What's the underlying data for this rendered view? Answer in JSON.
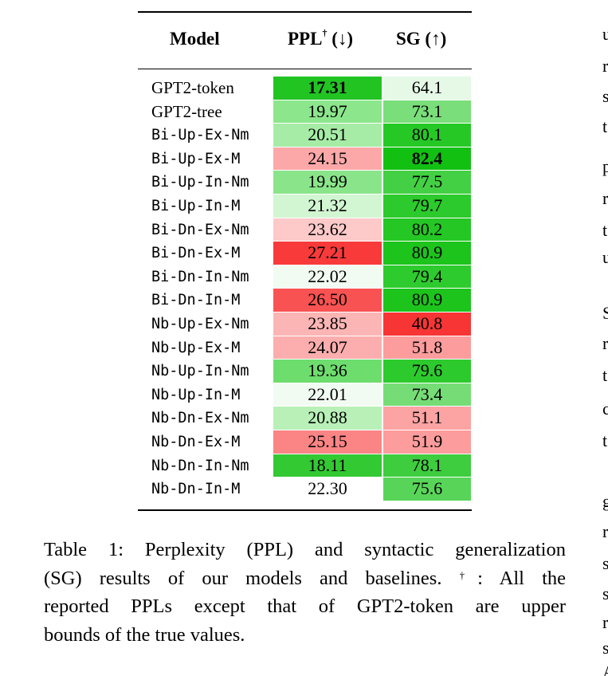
{
  "table": {
    "header": {
      "model": "Model",
      "ppl": "PPL",
      "ppl_dagger": "†",
      "ppl_arrow": "(↓)",
      "sg": "SG (↑)"
    },
    "rows": [
      {
        "model": "GPT2-token",
        "mono": false,
        "ppl": "17.31",
        "ppl_bold": true,
        "ppl_color": "#22c422",
        "sg": "64.1",
        "sg_bold": false,
        "sg_color": "#e6f8e6"
      },
      {
        "model": "GPT2-tree",
        "mono": false,
        "ppl": "19.97",
        "ppl_color": "#8ce68c",
        "sg": "73.1",
        "sg_color": "#7ade7a"
      },
      {
        "model": "Bi-Up-Ex-Nm",
        "mono": true,
        "ppl": "20.51",
        "ppl_color": "#a6eca6",
        "sg": "80.1",
        "sg_color": "#26c826"
      },
      {
        "model": "Bi-Up-Ex-M",
        "mono": true,
        "ppl": "24.15",
        "ppl_color": "#fca8a8",
        "sg": "82.4",
        "sg_bold": true,
        "sg_color": "#12c012"
      },
      {
        "model": "Bi-Up-In-Nm",
        "mono": true,
        "ppl": "19.99",
        "ppl_color": "#8ae58a",
        "sg": "77.5",
        "sg_color": "#44d044"
      },
      {
        "model": "Bi-Up-In-M",
        "mono": true,
        "ppl": "21.32",
        "ppl_color": "#d2f5d2",
        "sg": "79.7",
        "sg_color": "#2cca2c"
      },
      {
        "model": "Bi-Dn-Ex-Nm",
        "mono": true,
        "ppl": "23.62",
        "ppl_color": "#fdc9c9",
        "sg": "80.2",
        "sg_color": "#24c724"
      },
      {
        "model": "Bi-Dn-Ex-M",
        "mono": true,
        "ppl": "27.21",
        "ppl_color": "#f83a3a",
        "sg": "80.9",
        "sg_color": "#1cc41c"
      },
      {
        "model": "Bi-Dn-In-Nm",
        "mono": true,
        "ppl": "22.02",
        "ppl_color": "#f2fbf2",
        "sg": "79.4",
        "sg_color": "#2ecb2e"
      },
      {
        "model": "Bi-Dn-In-M",
        "mono": true,
        "ppl": "26.50",
        "ppl_color": "#f95252",
        "sg": "80.9",
        "sg_color": "#1cc41c"
      },
      {
        "model": "Nb-Up-Ex-Nm",
        "mono": true,
        "ppl": "23.85",
        "ppl_color": "#fcb5b5",
        "sg": "40.8",
        "sg_color": "#f73535"
      },
      {
        "model": "Nb-Up-Ex-M",
        "mono": true,
        "ppl": "24.07",
        "ppl_color": "#fcadad",
        "sg": "51.8",
        "sg_color": "#fc9c9c"
      },
      {
        "model": "Nb-Up-In-Nm",
        "mono": true,
        "ppl": "19.36",
        "ppl_color": "#6ddd6d",
        "sg": "79.6",
        "sg_color": "#2dca2d"
      },
      {
        "model": "Nb-Up-In-M",
        "mono": true,
        "ppl": "22.01",
        "ppl_color": "#f2fbf2",
        "sg": "73.4",
        "sg_color": "#76dd76"
      },
      {
        "model": "Nb-Dn-Ex-Nm",
        "mono": true,
        "ppl": "20.88",
        "ppl_color": "#b8f0b8",
        "sg": "51.1",
        "sg_color": "#fca3a3"
      },
      {
        "model": "Nb-Dn-Ex-M",
        "mono": true,
        "ppl": "25.15",
        "ppl_color": "#fb8484",
        "sg": "51.9",
        "sg_color": "#fc9c9c"
      },
      {
        "model": "Nb-Dn-In-Nm",
        "mono": true,
        "ppl": "18.11",
        "ppl_color": "#32c932",
        "sg": "78.1",
        "sg_color": "#3ecd3e"
      },
      {
        "model": "Nb-Dn-In-M",
        "mono": true,
        "ppl": "22.30",
        "ppl_color": "#ffffff",
        "sg": "75.6",
        "sg_color": "#58d558"
      }
    ]
  },
  "caption": {
    "line1": "Table 1:  Perplexity (PPL) and syntactic generalization",
    "line2a": "(SG) results of our models and baselines.",
    "line2_dagger": "†",
    "line2b": ": All the",
    "line3": "reported PPLs except that of GPT2-token are upper",
    "line4": "bounds of the true values."
  },
  "right_column_fragment": [
    "u",
    "r",
    "s",
    "t",
    "p",
    "r",
    "t",
    "u",
    "S",
    "r",
    "t",
    "c",
    "t",
    "g",
    "r",
    "s",
    "s",
    "r",
    "s",
    "A"
  ]
}
